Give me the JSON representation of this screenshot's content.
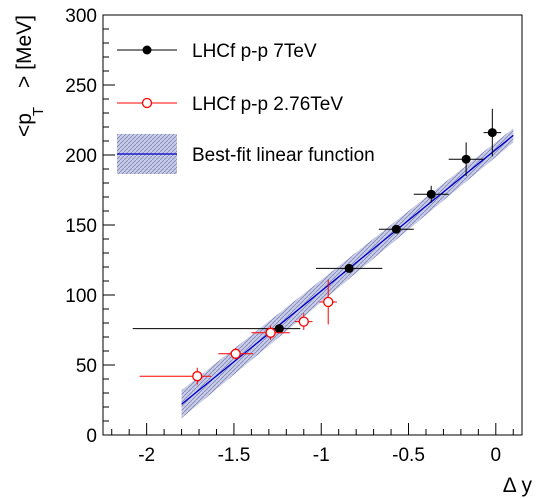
{
  "chart_data": {
    "type": "scatter",
    "xlabel": "Δ y",
    "ylabel_main": "<p",
    "ylabel_sub": "T",
    "ylabel_tail": "> [MeV]",
    "xlim": [
      -2.25,
      0.15
    ],
    "ylim": [
      0,
      300
    ],
    "x_ticks": [
      -2,
      -1.5,
      -1,
      -0.5,
      0
    ],
    "x_tick_labels": [
      "-2",
      "-1.5",
      "-1",
      "-0.5",
      "0"
    ],
    "y_ticks": [
      0,
      50,
      100,
      150,
      200,
      250,
      300
    ],
    "y_tick_labels": [
      "0",
      "50",
      "100",
      "150",
      "200",
      "250",
      "300"
    ],
    "grid": false,
    "legend_position": "top-left",
    "series": [
      {
        "name": "LHCf p-p 7TeV",
        "color": "#000000",
        "marker": "filled-circle",
        "points": [
          {
            "x": -1.24,
            "y": 76,
            "xerr_lo": 0.84,
            "xerr_hi": 0.12,
            "yerr": 3
          },
          {
            "x": -0.84,
            "y": 119,
            "xerr_lo": 0.19,
            "xerr_hi": 0.19,
            "yerr": 3
          },
          {
            "x": -0.57,
            "y": 147,
            "xerr_lo": 0.1,
            "xerr_hi": 0.1,
            "yerr": 3
          },
          {
            "x": -0.37,
            "y": 172,
            "xerr_lo": 0.1,
            "xerr_hi": 0.1,
            "yerr": 6
          },
          {
            "x": -0.17,
            "y": 197,
            "xerr_lo": 0.1,
            "xerr_hi": 0.1,
            "yerr": 12
          },
          {
            "x": -0.02,
            "y": 216,
            "xerr_lo": 0.05,
            "xerr_hi": 0.05,
            "yerr": 17
          }
        ]
      },
      {
        "name": "LHCf p-p 2.76TeV",
        "color": "#ff0000",
        "marker": "open-circle",
        "points": [
          {
            "x": -1.71,
            "y": 42,
            "xerr_lo": 0.33,
            "xerr_hi": 0.08,
            "yerr": 6
          },
          {
            "x": -1.49,
            "y": 58,
            "xerr_lo": 0.1,
            "xerr_hi": 0.1,
            "yerr": 4
          },
          {
            "x": -1.29,
            "y": 73,
            "xerr_lo": 0.11,
            "xerr_hi": 0.11,
            "yerr": 5
          },
          {
            "x": -1.1,
            "y": 81,
            "xerr_lo": 0.05,
            "xerr_hi": 0.05,
            "yerr": 6
          },
          {
            "x": -0.96,
            "y": 95,
            "xerr_lo": 0.05,
            "xerr_hi": 0.05,
            "yerr": 16
          }
        ]
      }
    ],
    "fit": {
      "name": "Best-fit linear function",
      "color": "#0000cc",
      "band_color": "#9aa0cc",
      "x_range": [
        -1.8,
        0.1
      ],
      "y_start": 22,
      "y_end": 214,
      "band_halfwidth_start": 10,
      "band_halfwidth_end": 5
    }
  }
}
